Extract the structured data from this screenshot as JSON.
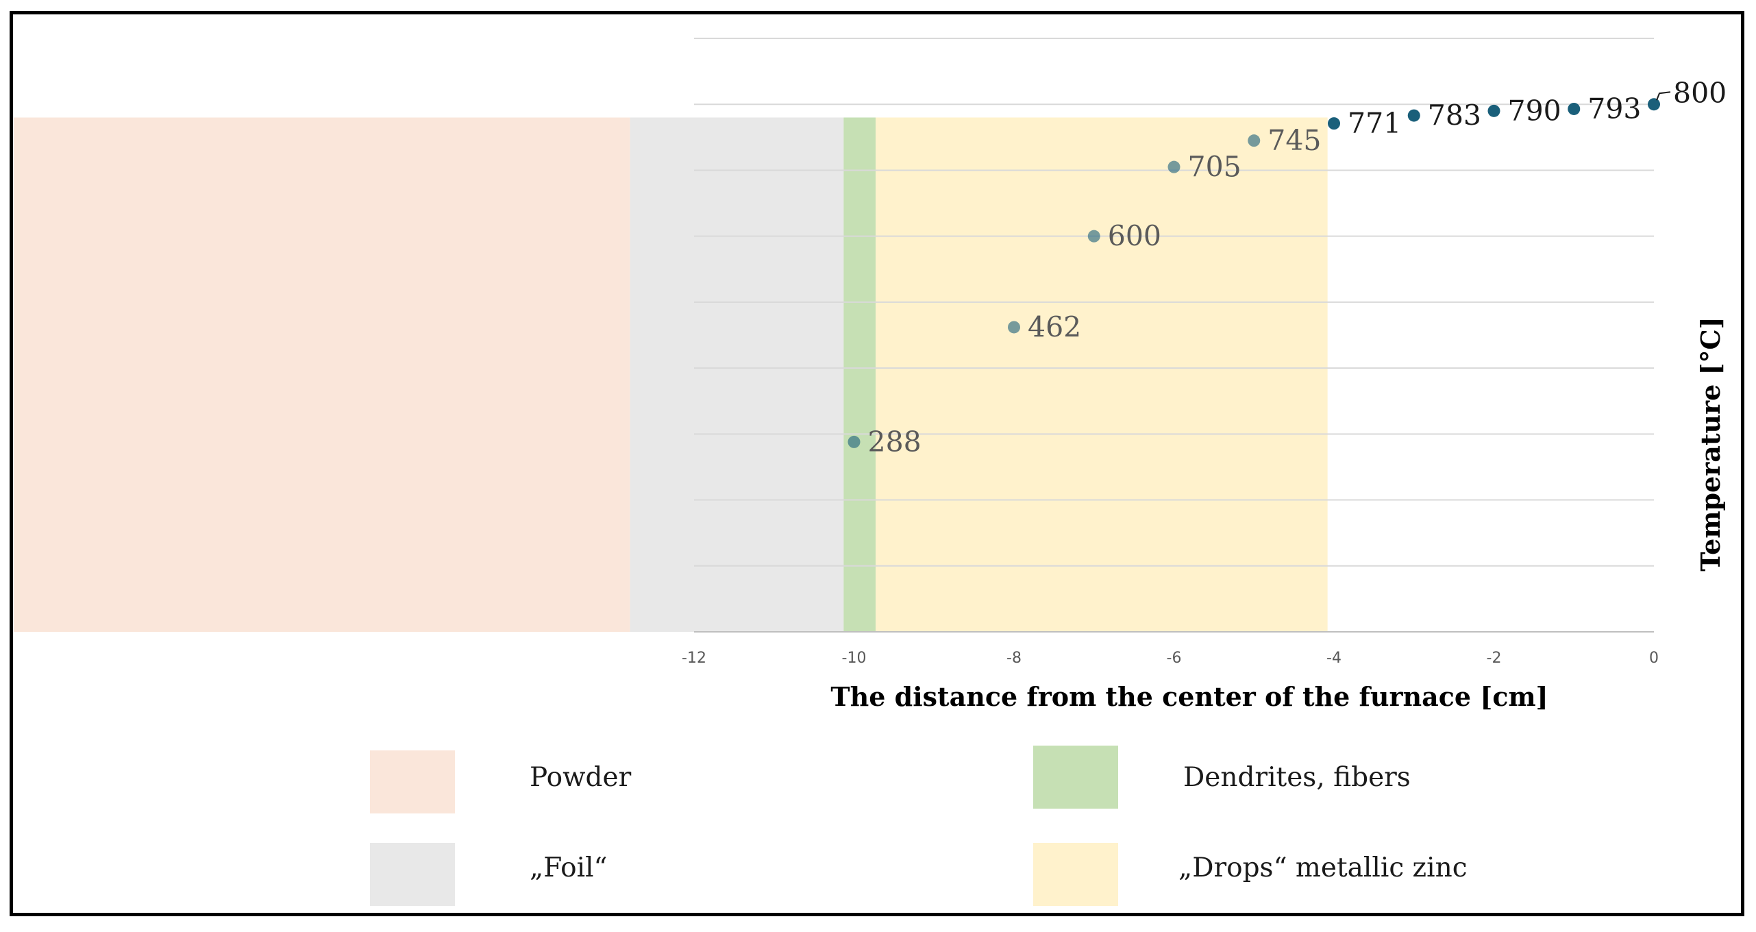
{
  "chart_data": {
    "type": "scatter",
    "x": [
      -10,
      -8,
      -7,
      -6,
      -5,
      -4,
      -3,
      -2,
      -1,
      0
    ],
    "y": [
      288,
      462,
      600,
      705,
      745,
      771,
      783,
      790,
      793,
      800
    ],
    "data_labels": [
      "288",
      "462",
      "600",
      "705",
      "745",
      "771",
      "783",
      "790",
      "793",
      "800"
    ],
    "xlabel": "The distance from the center of the furnace [cm]",
    "ylabel": "Temperature [°C]",
    "xlim": [
      -12,
      0
    ],
    "ylim": [
      0,
      900
    ],
    "x_tick_labels": [
      "-12",
      "-10",
      "-8",
      "-6",
      "-4",
      "-2",
      "0"
    ],
    "x_ticks": [
      -12,
      -10,
      -8,
      -6,
      -4,
      -2,
      0
    ],
    "y_gridlines": [
      0,
      100,
      200,
      300,
      400,
      500,
      600,
      700,
      800,
      900
    ],
    "grid": "horizontal",
    "point_color": "#1a5f7a",
    "regions": [
      {
        "name": "Powder",
        "from": -21.35,
        "to": -12.8,
        "color": "#fae6da"
      },
      {
        "name": "„Foil“",
        "from": -12.8,
        "to": -10.13,
        "color": "#e8e8e8"
      },
      {
        "name": "Dendrites, fibers",
        "from": -10.13,
        "to": -9.73,
        "color": "#c6e0b4"
      },
      {
        "name": "„Drops“ metallic zinc",
        "from": -9.73,
        "to": -4.08,
        "color": "#fff2cc"
      }
    ],
    "region_temperature_range": [
      0,
      780
    ]
  },
  "legend": {
    "items": [
      {
        "label": "Powder",
        "color": "#fae6da"
      },
      {
        "label": "Dendrites, fibers",
        "color": "#c6e0b4"
      },
      {
        "label": "„Foil“",
        "color": "#e8e8e8"
      },
      {
        "label": "„Drops“ metallic zinc",
        "color": "#fff2cc"
      }
    ]
  }
}
